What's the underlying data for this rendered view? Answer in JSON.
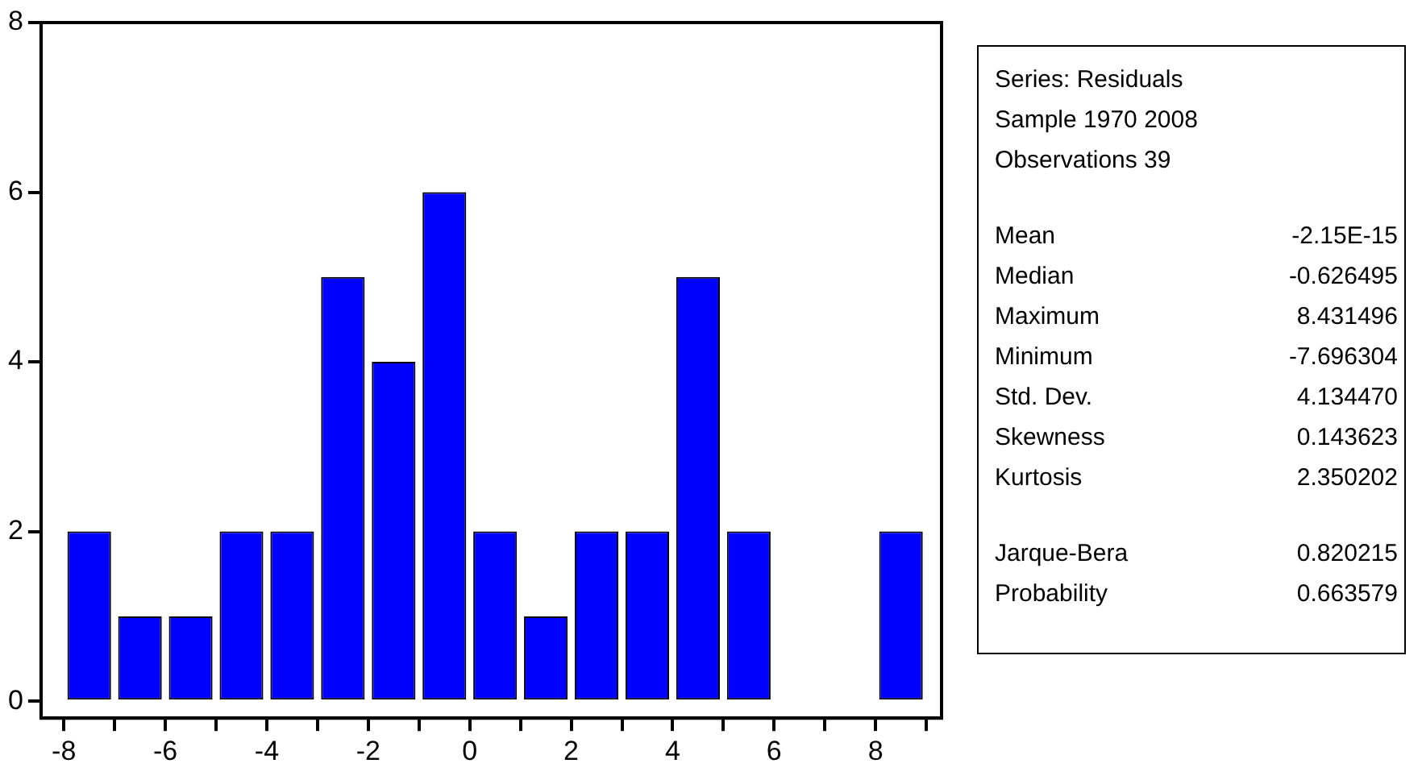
{
  "chart_data": {
    "type": "histogram",
    "bins": [
      -8,
      -7,
      -6,
      -5,
      -4,
      -3,
      -2,
      -1,
      0,
      1,
      2,
      3,
      4,
      5,
      6,
      7,
      8,
      9
    ],
    "values": [
      2,
      1,
      1,
      2,
      2,
      5,
      4,
      6,
      2,
      1,
      2,
      2,
      5,
      2,
      0,
      0,
      2
    ],
    "color": "#0000ff",
    "xlim": [
      -8.45,
      9.3
    ],
    "xticks": [
      -8,
      {
        "value": -7,
        "label": null
      },
      -6,
      {
        "value": -5,
        "label": null
      },
      -4,
      {
        "value": -3,
        "label": null
      },
      -2,
      {
        "value": -1,
        "label": null
      },
      0,
      {
        "value": 1,
        "label": null
      },
      2,
      {
        "value": 3,
        "label": null
      },
      4,
      {
        "value": 5,
        "label": null
      },
      6,
      {
        "value": 7,
        "label": null
      },
      8,
      {
        "value": 9,
        "label": null
      }
    ],
    "ylim": [
      -0.2,
      8
    ],
    "yticks": [
      0,
      2,
      4,
      6,
      8
    ],
    "grid": false,
    "legend": false,
    "annotations": [
      "Series: Residuals",
      "Sample 1970 2008",
      "Observations 39",
      "Mean\t-2.15E-15",
      "Median\t-0.626495",
      "Maximum\t8.431496",
      "Minimum\t-7.696304",
      "Std. Dev.\t4.134470",
      "Skewness\t0.143623",
      "Kurtosis\t2.350202",
      "Jarque-Bera\t0.820215",
      "Probability\t0.663579"
    ]
  }
}
